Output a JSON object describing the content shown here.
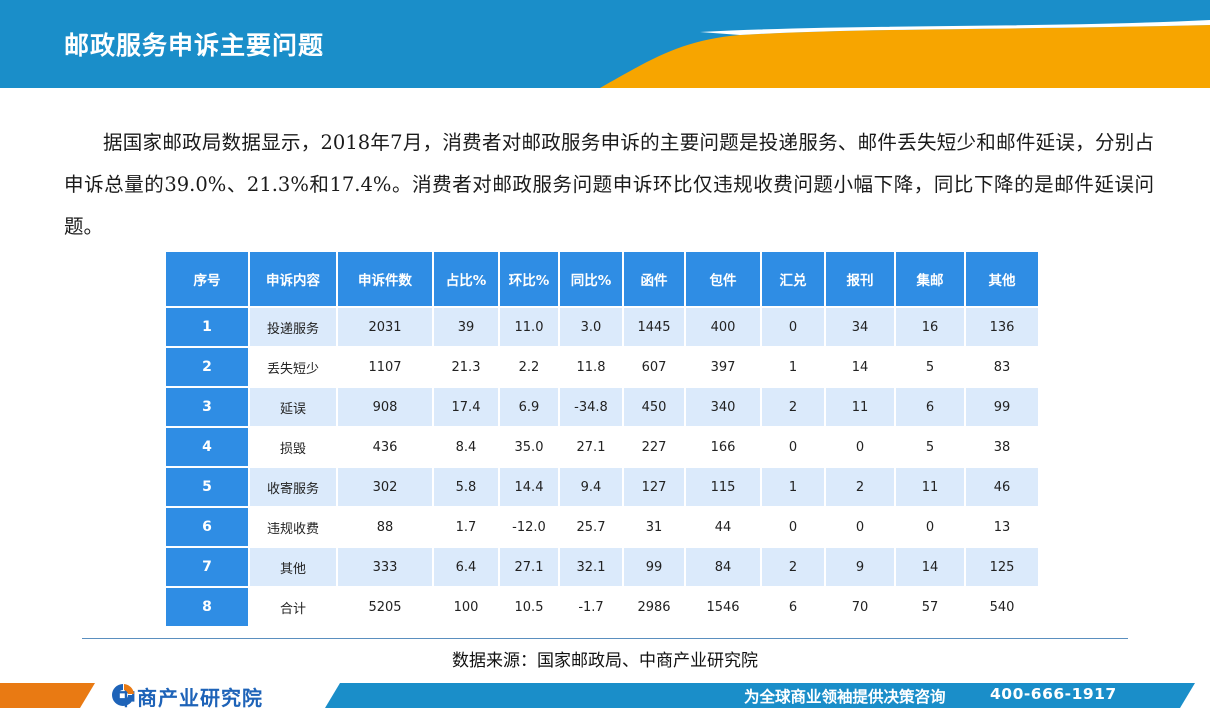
{
  "header": {
    "title": "邮政服务申诉主要问题",
    "colors": {
      "blue": "#1a8ec9",
      "orange": "#f7a500"
    }
  },
  "intro": "据国家邮政局数据显示，2018年7月，消费者对邮政服务申诉的主要问题是投递服务、邮件丢失短少和邮件延误，分别占申诉总量的39.0%、21.3%和17.4%。消费者对邮政服务问题申诉环比仅违规收费问题小幅下降，同比下降的是邮件延误问题。",
  "table": {
    "headers": [
      "序号",
      "申诉内容",
      "申诉件数",
      "占比%",
      "环比%",
      "同比%",
      "函件",
      "包件",
      "汇兑",
      "报刊",
      "集邮",
      "其他"
    ],
    "rows": [
      [
        "1",
        "投递服务",
        "2031",
        "39",
        "11.0",
        "3.0",
        "1445",
        "400",
        "0",
        "34",
        "16",
        "136"
      ],
      [
        "2",
        "丢失短少",
        "1107",
        "21.3",
        "2.2",
        "11.8",
        "607",
        "397",
        "1",
        "14",
        "5",
        "83"
      ],
      [
        "3",
        "延误",
        "908",
        "17.4",
        "6.9",
        "-34.8",
        "450",
        "340",
        "2",
        "11",
        "6",
        "99"
      ],
      [
        "4",
        "损毁",
        "436",
        "8.4",
        "35.0",
        "27.1",
        "227",
        "166",
        "0",
        "0",
        "5",
        "38"
      ],
      [
        "5",
        "收寄服务",
        "302",
        "5.8",
        "14.4",
        "9.4",
        "127",
        "115",
        "1",
        "2",
        "11",
        "46"
      ],
      [
        "6",
        "违规收费",
        "88",
        "1.7",
        "-12.0",
        "25.7",
        "31",
        "44",
        "0",
        "0",
        "0",
        "13"
      ],
      [
        "7",
        "其他",
        "333",
        "6.4",
        "27.1",
        "32.1",
        "99",
        "84",
        "2",
        "9",
        "14",
        "125"
      ],
      [
        "8",
        "合计",
        "5205",
        "100",
        "10.5",
        "-1.7",
        "2986",
        "1546",
        "6",
        "70",
        "57",
        "540"
      ]
    ]
  },
  "source": "数据来源：国家邮政局、中商产业研究院",
  "footer": {
    "logo_name": "中商产业研究院",
    "logo_icon": "zhongshang-logo-icon",
    "slogan": "为全球商业领袖提供决策咨询",
    "phone": "400-666-1917"
  }
}
